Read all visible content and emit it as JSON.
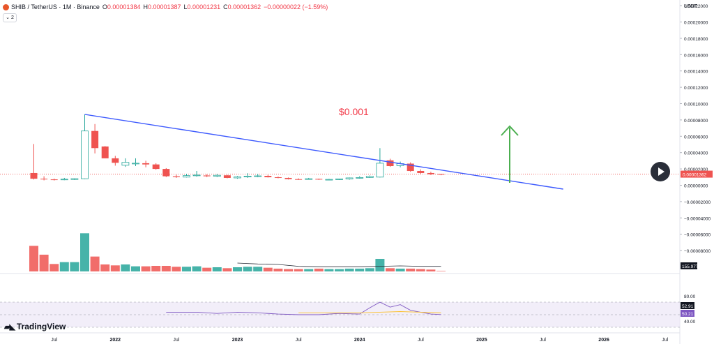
{
  "header": {
    "symbol": "SHIB / TetherUS · 1M · Binance",
    "o_key": "O",
    "o_val": "0.00001384",
    "h_key": "H",
    "h_val": "0.00001387",
    "l_key": "L",
    "l_val": "0.00001231",
    "c_key": "C",
    "c_val": "0.00001362",
    "change": "−0.00000022 (−1.59%)",
    "indicator_toggle": "⌄ 2"
  },
  "price_axis": {
    "unit": "USDT",
    "labels": [
      {
        "v": 0.00022,
        "t": "0.00022000"
      },
      {
        "v": 0.0002,
        "t": "0.00020000"
      },
      {
        "v": 0.00018,
        "t": "0.00018000"
      },
      {
        "v": 0.00016,
        "t": "0.00016000"
      },
      {
        "v": 0.00014,
        "t": "0.00014000"
      },
      {
        "v": 0.00012,
        "t": "0.00012000"
      },
      {
        "v": 0.0001,
        "t": "0.00010000"
      },
      {
        "v": 8e-05,
        "t": "0.00008000"
      },
      {
        "v": 6e-05,
        "t": "0.00006000"
      },
      {
        "v": 4e-05,
        "t": "0.00004000"
      },
      {
        "v": 2e-05,
        "t": "0.00002000"
      },
      {
        "v": 0.0,
        "t": "0.00000000"
      },
      {
        "v": -2e-05,
        "t": "−0.00002000"
      },
      {
        "v": -4e-05,
        "t": "−0.00004000"
      },
      {
        "v": -6e-05,
        "t": "−0.00006000"
      },
      {
        "v": -8e-05,
        "t": "−0.00008000"
      }
    ],
    "current_price_label": "0.00001362",
    "volume_label": "155.97T"
  },
  "rsi_axis": {
    "labels": [
      {
        "v": 80,
        "t": "80.00"
      },
      {
        "v": 40,
        "t": "40.00"
      }
    ],
    "rsi_label": "50.21",
    "rsi_ma_label": "52.91"
  },
  "time_axis": [
    {
      "m": 6,
      "t": "Jul"
    },
    {
      "m": 12,
      "t": "2022"
    },
    {
      "m": 18,
      "t": "Jul"
    },
    {
      "m": 24,
      "t": "2023"
    },
    {
      "m": 30,
      "t": "Jul"
    },
    {
      "m": 36,
      "t": "2024"
    },
    {
      "m": 42,
      "t": "Jul"
    },
    {
      "m": 48,
      "t": "2025"
    },
    {
      "m": 54,
      "t": "Jul"
    },
    {
      "m": 60,
      "t": "2026"
    },
    {
      "m": 66,
      "t": "Jul"
    }
  ],
  "annotations": {
    "target_text": "$0.001",
    "trendline": {
      "m1": 9,
      "v1": 8.68e-05,
      "m2": 56,
      "v2": -4.7e-06
    }
  },
  "logo_text": "TradingView",
  "colors": {
    "up": "#26a69a",
    "down": "#ef5350",
    "trendline": "#3d5afe",
    "arrow": "#4caf50",
    "target_text": "#f23645",
    "rsi": "#7e57c2",
    "rsi_ma": "#fbc02d",
    "rsi_band": "#ede7f6"
  },
  "chart_data": {
    "type": "candlestick",
    "note_x": "month index from Jan 2021 = 0",
    "candles": [
      {
        "m": 4,
        "o": 1.5e-05,
        "h": 5.05e-05,
        "l": 7e-06,
        "c": 8e-06,
        "vol": 55
      },
      {
        "m": 5,
        "o": 8e-06,
        "h": 1.1e-05,
        "l": 6e-06,
        "c": 7.2e-06,
        "vol": 36
      },
      {
        "m": 6,
        "o": 7.2e-06,
        "h": 8.2e-06,
        "l": 5.8e-06,
        "c": 7e-06,
        "vol": 16
      },
      {
        "m": 7,
        "o": 7e-06,
        "h": 9e-06,
        "l": 6.2e-06,
        "c": 7.5e-06,
        "vol": 20
      },
      {
        "m": 8,
        "o": 7.2e-06,
        "h": 8.5e-06,
        "l": 6.5e-06,
        "c": 8e-06,
        "vol": 20
      },
      {
        "m": 9,
        "o": 8e-06,
        "h": 8.68e-05,
        "l": 7.5e-06,
        "c": 6.65e-05,
        "vol": 82
      },
      {
        "m": 10,
        "o": 6.65e-05,
        "h": 7.5e-05,
        "l": 3.9e-05,
        "c": 4.55e-05,
        "vol": 32
      },
      {
        "m": 11,
        "o": 4.75e-05,
        "h": 4.8e-05,
        "l": 3.3e-05,
        "c": 3.3e-05,
        "vol": 15
      },
      {
        "m": 12,
        "o": 3.3e-05,
        "h": 3.6e-05,
        "l": 2.4e-05,
        "c": 2.75e-05,
        "vol": 13
      },
      {
        "m": 13,
        "o": 2.45e-05,
        "h": 3.3e-05,
        "l": 2.25e-05,
        "c": 2.8e-05,
        "vol": 15
      },
      {
        "m": 14,
        "o": 2.7e-05,
        "h": 3.3e-05,
        "l": 2.35e-05,
        "c": 2.7e-05,
        "vol": 11
      },
      {
        "m": 15,
        "o": 2.7e-05,
        "h": 3e-05,
        "l": 2.2e-05,
        "c": 2.55e-05,
        "vol": 11
      },
      {
        "m": 16,
        "o": 2.55e-05,
        "h": 2.7e-05,
        "l": 1.9e-05,
        "c": 2e-05,
        "vol": 12
      },
      {
        "m": 17,
        "o": 2e-05,
        "h": 2.1e-05,
        "l": 1e-05,
        "c": 1.1e-05,
        "vol": 12
      },
      {
        "m": 18,
        "o": 1.1e-05,
        "h": 1.3e-05,
        "l": 9e-06,
        "c": 1e-05,
        "vol": 10
      },
      {
        "m": 19,
        "o": 1e-05,
        "h": 1.4e-05,
        "l": 9.5e-06,
        "c": 1.18e-05,
        "vol": 10
      },
      {
        "m": 20,
        "o": 1.18e-05,
        "h": 1.75e-05,
        "l": 1.05e-05,
        "c": 1.25e-05,
        "vol": 11
      },
      {
        "m": 21,
        "o": 1.2e-05,
        "h": 1.35e-05,
        "l": 1e-05,
        "c": 1.1e-05,
        "vol": 8
      },
      {
        "m": 22,
        "o": 1.1e-05,
        "h": 1.38e-05,
        "l": 1e-05,
        "c": 1.22e-05,
        "vol": 9
      },
      {
        "m": 23,
        "o": 1.22e-05,
        "h": 1.28e-05,
        "l": 8.5e-06,
        "c": 9e-06,
        "vol": 7
      },
      {
        "m": 24,
        "o": 9e-06,
        "h": 1.12e-05,
        "l": 8e-06,
        "c": 1.02e-05,
        "vol": 9
      },
      {
        "m": 25,
        "o": 1.02e-05,
        "h": 1.48e-05,
        "l": 9e-06,
        "c": 1.12e-05,
        "vol": 10
      },
      {
        "m": 26,
        "o": 1.12e-05,
        "h": 1.4e-05,
        "l": 9.8e-06,
        "c": 1.15e-05,
        "vol": 10
      },
      {
        "m": 27,
        "o": 1.15e-05,
        "h": 1.28e-05,
        "l": 9.5e-06,
        "c": 9.8e-06,
        "vol": 8
      },
      {
        "m": 28,
        "o": 9.8e-06,
        "h": 1.08e-05,
        "l": 8.5e-06,
        "c": 9e-06,
        "vol": 6
      },
      {
        "m": 29,
        "o": 9e-06,
        "h": 9.5e-06,
        "l": 7e-06,
        "c": 7.5e-06,
        "vol": 5
      },
      {
        "m": 30,
        "o": 7.5e-06,
        "h": 8.5e-06,
        "l": 6.5e-06,
        "c": 7.2e-06,
        "vol": 5
      },
      {
        "m": 31,
        "o": 7.2e-06,
        "h": 9e-06,
        "l": 6.8e-06,
        "c": 8e-06,
        "vol": 5
      },
      {
        "m": 32,
        "o": 7.8e-06,
        "h": 8.2e-06,
        "l": 6.5e-06,
        "c": 7e-06,
        "vol": 6
      },
      {
        "m": 33,
        "o": 7e-06,
        "h": 7.8e-06,
        "l": 6e-06,
        "c": 7.2e-06,
        "vol": 5
      },
      {
        "m": 34,
        "o": 7.2e-06,
        "h": 8e-06,
        "l": 6.5e-06,
        "c": 7.8e-06,
        "vol": 5
      },
      {
        "m": 35,
        "o": 7.8e-06,
        "h": 9.5e-06,
        "l": 6.8e-06,
        "c": 9e-06,
        "vol": 6
      },
      {
        "m": 36,
        "o": 9e-06,
        "h": 1.1e-05,
        "l": 8.2e-06,
        "c": 9.5e-06,
        "vol": 6
      },
      {
        "m": 37,
        "o": 9.5e-06,
        "h": 1.2e-05,
        "l": 9e-06,
        "c": 1.1e-05,
        "vol": 7
      },
      {
        "m": 38,
        "o": 1e-05,
        "h": 4.55e-05,
        "l": 9.5e-06,
        "c": 2.7e-05,
        "vol": 27
      },
      {
        "m": 39,
        "o": 3.05e-05,
        "h": 3.25e-05,
        "l": 2.25e-05,
        "c": 2.35e-05,
        "vol": 7
      },
      {
        "m": 40,
        "o": 2.4e-05,
        "h": 2.9e-05,
        "l": 2.2e-05,
        "c": 2.65e-05,
        "vol": 6
      },
      {
        "m": 41,
        "o": 2.65e-05,
        "h": 2.8e-05,
        "l": 1.65e-05,
        "c": 1.75e-05,
        "vol": 6
      },
      {
        "m": 42,
        "o": 1.75e-05,
        "h": 1.95e-05,
        "l": 1.35e-05,
        "c": 1.5e-05,
        "vol": 5
      },
      {
        "m": 43,
        "o": 1.5e-05,
        "h": 1.65e-05,
        "l": 1.25e-05,
        "c": 1.35e-05,
        "vol": 4
      },
      {
        "m": 44,
        "o": 1.38e-05,
        "h": 1.39e-05,
        "l": 1.23e-05,
        "c": 1.36e-05,
        "vol": 1
      }
    ],
    "volume_ma": [
      {
        "m": 24,
        "v": 18
      },
      {
        "m": 26,
        "v": 16
      },
      {
        "m": 28,
        "v": 15
      },
      {
        "m": 30,
        "v": 11
      },
      {
        "m": 32,
        "v": 10
      },
      {
        "m": 34,
        "v": 10
      },
      {
        "m": 36,
        "v": 10
      },
      {
        "m": 38,
        "v": 11
      },
      {
        "m": 40,
        "v": 12
      },
      {
        "m": 42,
        "v": 11
      },
      {
        "m": 44,
        "v": 11
      }
    ],
    "rsi": [
      {
        "m": 17,
        "v": 54
      },
      {
        "m": 20,
        "v": 54
      },
      {
        "m": 22,
        "v": 52
      },
      {
        "m": 24,
        "v": 54
      },
      {
        "m": 26,
        "v": 53
      },
      {
        "m": 28,
        "v": 51
      },
      {
        "m": 30,
        "v": 50
      },
      {
        "m": 32,
        "v": 50
      },
      {
        "m": 34,
        "v": 52
      },
      {
        "m": 36,
        "v": 51
      },
      {
        "m": 37,
        "v": 61
      },
      {
        "m": 38,
        "v": 70
      },
      {
        "m": 39,
        "v": 62
      },
      {
        "m": 40,
        "v": 66
      },
      {
        "m": 41,
        "v": 57
      },
      {
        "m": 42,
        "v": 54
      },
      {
        "m": 43,
        "v": 51
      },
      {
        "m": 44,
        "v": 50.21
      }
    ],
    "rsi_ma": [
      {
        "m": 30,
        "v": 53
      },
      {
        "m": 33,
        "v": 53
      },
      {
        "m": 36,
        "v": 53
      },
      {
        "m": 38,
        "v": 54
      },
      {
        "m": 40,
        "v": 55
      },
      {
        "m": 42,
        "v": 54
      },
      {
        "m": 44,
        "v": 52.91
      }
    ],
    "rsi_levels": {
      "upper": 70,
      "middle": 50,
      "lower": 30
    },
    "ylim": [
      -9e-05,
      0.000225
    ]
  }
}
